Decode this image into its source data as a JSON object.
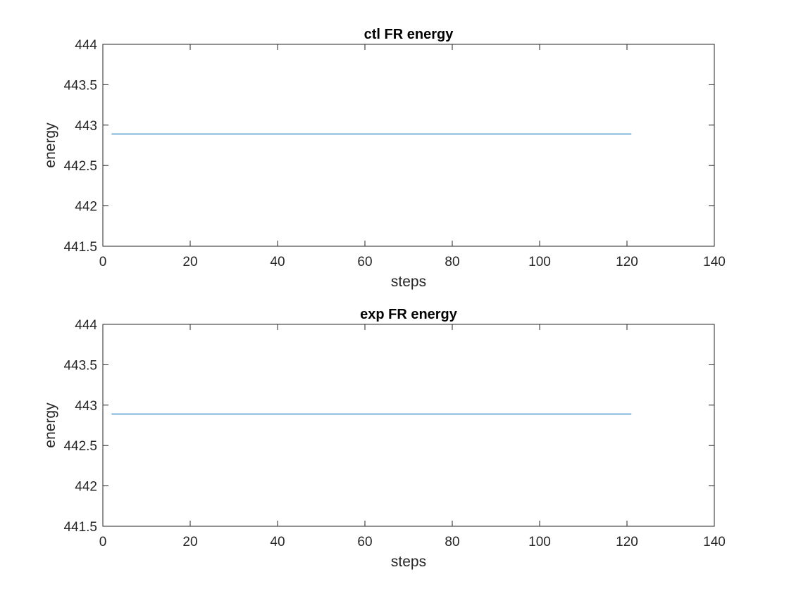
{
  "chart_data": [
    {
      "type": "line",
      "title": "ctl FR energy",
      "xlabel": "steps",
      "ylabel": "energy",
      "xlim": [
        0,
        140
      ],
      "ylim": [
        441.5,
        444
      ],
      "xticks": [
        0,
        20,
        40,
        60,
        80,
        100,
        120,
        140
      ],
      "yticks": [
        441.5,
        442,
        442.5,
        443,
        443.5,
        444
      ],
      "xtick_labels": [
        "0",
        "20",
        "40",
        "60",
        "80",
        "100",
        "120",
        "140"
      ],
      "ytick_labels": [
        "441.5",
        "442",
        "442.5",
        "443",
        "443.5",
        "444"
      ],
      "grid": false,
      "series": [
        {
          "color": "#0072BD",
          "x": [
            2,
            121
          ],
          "y": [
            442.89,
            442.89
          ]
        }
      ]
    },
    {
      "type": "line",
      "title": "exp FR energy",
      "xlabel": "steps",
      "ylabel": "energy",
      "xlim": [
        0,
        140
      ],
      "ylim": [
        441.5,
        444
      ],
      "xticks": [
        0,
        20,
        40,
        60,
        80,
        100,
        120,
        140
      ],
      "yticks": [
        441.5,
        442,
        442.5,
        443,
        443.5,
        444
      ],
      "xtick_labels": [
        "0",
        "20",
        "40",
        "60",
        "80",
        "100",
        "120",
        "140"
      ],
      "ytick_labels": [
        "441.5",
        "442",
        "442.5",
        "443",
        "443.5",
        "444"
      ],
      "grid": false,
      "series": [
        {
          "color": "#0072BD",
          "x": [
            2,
            121
          ],
          "y": [
            442.89,
            442.89
          ]
        }
      ]
    }
  ]
}
